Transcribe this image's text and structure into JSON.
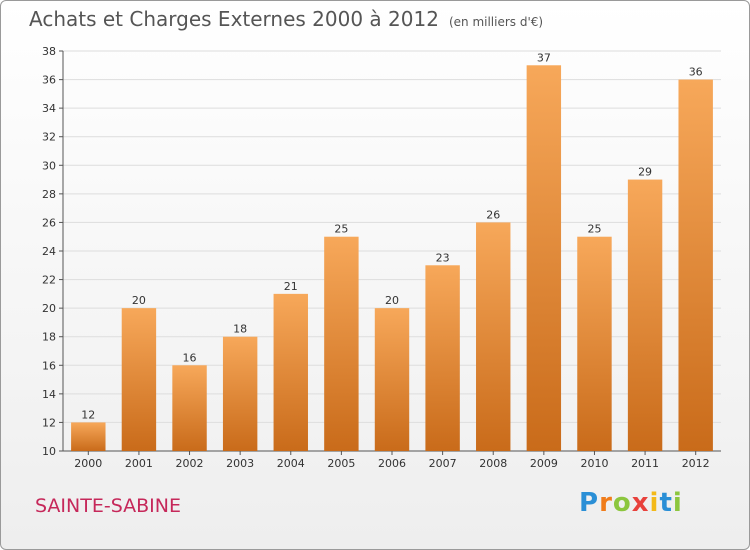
{
  "header": {
    "title": "Achats et Charges Externes 2000 à 2012",
    "subtitle": "(en milliers d'€)"
  },
  "footer": {
    "place": "SAINTE-SABINE",
    "logo": [
      {
        "char": "P",
        "color": "#2a8fd6"
      },
      {
        "char": "r",
        "color": "#f07c1a"
      },
      {
        "char": "o",
        "color": "#8cc63e"
      },
      {
        "char": "x",
        "color": "#e8413c"
      },
      {
        "char": "i",
        "color": "#f3b919"
      },
      {
        "char": "t",
        "color": "#2a8fd6"
      },
      {
        "char": "i",
        "color": "#8cc63e"
      }
    ]
  },
  "colors": {
    "bar_top": "#f7a85a",
    "bar_bottom": "#c96b1a",
    "grid": "#dddddd"
  },
  "chart_data": {
    "type": "bar",
    "categories": [
      "2000",
      "2001",
      "2002",
      "2003",
      "2004",
      "2005",
      "2006",
      "2007",
      "2008",
      "2009",
      "2010",
      "2011",
      "2012"
    ],
    "values": [
      12,
      20,
      16,
      18,
      21,
      25,
      20,
      23,
      26,
      37,
      25,
      29,
      36
    ],
    "ylim": [
      10,
      38
    ],
    "yticks": [
      10,
      12,
      14,
      16,
      18,
      20,
      22,
      24,
      26,
      28,
      30,
      32,
      34,
      36,
      38
    ],
    "grid": true
  }
}
